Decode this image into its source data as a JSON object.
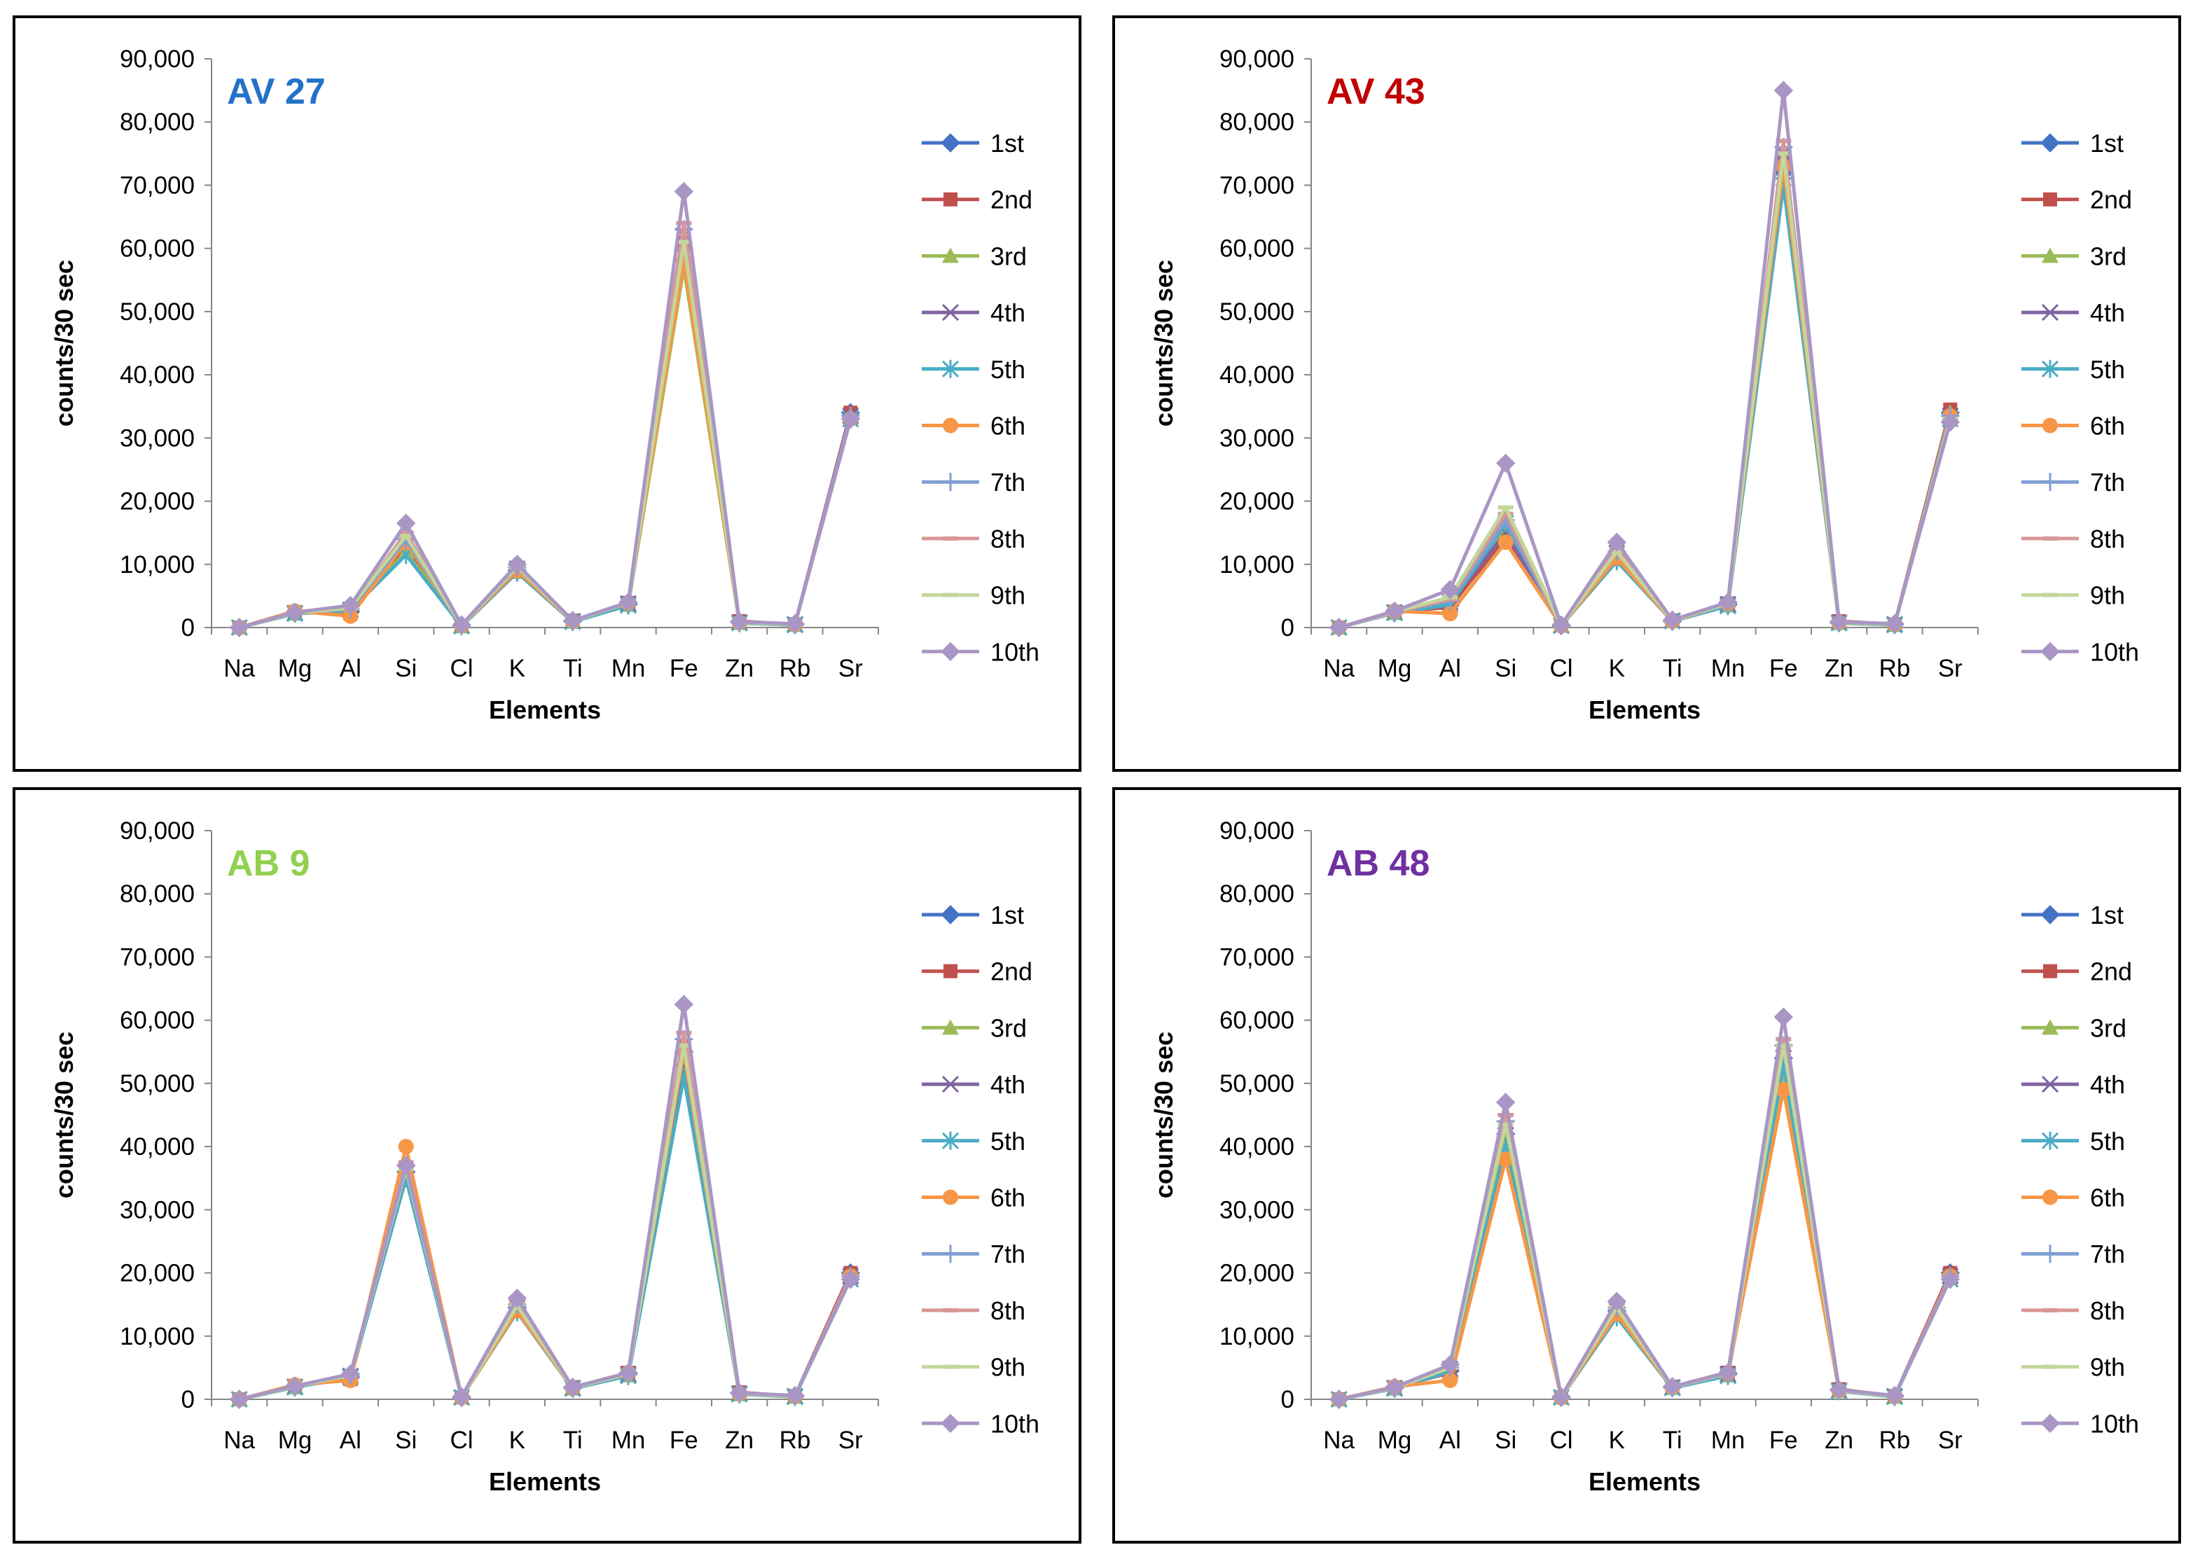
{
  "chart_data": [
    {
      "type": "line",
      "title": "AV 27",
      "title_color": "#2472C8",
      "xlabel": "Elements",
      "ylabel": "counts/30 sec",
      "ylim": [
        0,
        90000
      ],
      "yticks": [
        "0",
        "10,000",
        "20,000",
        "30,000",
        "40,000",
        "50,000",
        "60,000",
        "70,000",
        "80,000",
        "90,000"
      ],
      "categories": [
        "Na",
        "Mg",
        "Al",
        "Si",
        "Cl",
        "K",
        "Ti",
        "Mn",
        "Fe",
        "Zn",
        "Rb",
        "Sr"
      ],
      "series": [
        {
          "name": "1st",
          "values": [
            0,
            2300,
            2500,
            12500,
            400,
            9000,
            1000,
            3700,
            60000,
            900,
            500,
            34000
          ]
        },
        {
          "name": "2nd",
          "values": [
            0,
            2400,
            2200,
            13000,
            300,
            9200,
            1100,
            3900,
            61000,
            1000,
            500,
            34000
          ]
        },
        {
          "name": "3rd",
          "values": [
            0,
            2200,
            2600,
            12000,
            200,
            8800,
            900,
            3600,
            57000,
            700,
            400,
            33500
          ]
        },
        {
          "name": "4th",
          "values": [
            0,
            2300,
            2800,
            13500,
            300,
            9300,
            1000,
            3800,
            62000,
            800,
            500,
            33500
          ]
        },
        {
          "name": "5th",
          "values": [
            0,
            2200,
            2700,
            11500,
            200,
            8700,
            900,
            3500,
            59000,
            700,
            400,
            33000
          ]
        },
        {
          "name": "6th",
          "values": [
            0,
            2600,
            1800,
            13500,
            300,
            9000,
            1000,
            3900,
            58000,
            800,
            500,
            33000
          ]
        },
        {
          "name": "7th",
          "values": [
            0,
            2400,
            2900,
            14000,
            300,
            9500,
            1100,
            3900,
            63000,
            900,
            500,
            33500
          ]
        },
        {
          "name": "8th",
          "values": [
            0,
            2400,
            3000,
            15000,
            300,
            9700,
            1100,
            4000,
            64000,
            900,
            500,
            33000
          ]
        },
        {
          "name": "9th",
          "values": [
            0,
            2300,
            3100,
            14500,
            300,
            9600,
            1000,
            3900,
            61000,
            800,
            500,
            33000
          ]
        },
        {
          "name": "10th",
          "values": [
            0,
            2400,
            3500,
            16500,
            400,
            10000,
            1100,
            4000,
            69000,
            900,
            600,
            33000
          ]
        }
      ]
    },
    {
      "type": "line",
      "title": "AV 43",
      "title_color": "#C00000",
      "xlabel": "Elements",
      "ylabel": "counts/30 sec",
      "ylim": [
        0,
        90000
      ],
      "yticks": [
        "0",
        "10,000",
        "20,000",
        "30,000",
        "40,000",
        "50,000",
        "60,000",
        "70,000",
        "80,000",
        "90,000"
      ],
      "categories": [
        "Na",
        "Mg",
        "Al",
        "Si",
        "Cl",
        "K",
        "Ti",
        "Mn",
        "Fe",
        "Zn",
        "Rb",
        "Sr"
      ],
      "series": [
        {
          "name": "1st",
          "values": [
            0,
            2400,
            3500,
            14000,
            300,
            11000,
            1000,
            3600,
            72000,
            800,
            500,
            34000
          ]
        },
        {
          "name": "2nd",
          "values": [
            0,
            2500,
            3200,
            14500,
            300,
            11500,
            1100,
            3800,
            74000,
            1000,
            500,
            34500
          ]
        },
        {
          "name": "3rd",
          "values": [
            0,
            2300,
            3800,
            16000,
            300,
            11000,
            1000,
            3500,
            71000,
            700,
            400,
            34000
          ]
        },
        {
          "name": "4th",
          "values": [
            0,
            2400,
            4000,
            15000,
            300,
            11800,
            1100,
            3700,
            75000,
            800,
            500,
            33500
          ]
        },
        {
          "name": "5th",
          "values": [
            0,
            2300,
            3600,
            16500,
            300,
            10500,
            1000,
            3400,
            70000,
            700,
            400,
            33000
          ]
        },
        {
          "name": "6th",
          "values": [
            0,
            2600,
            2200,
            13500,
            300,
            11000,
            1000,
            3800,
            73000,
            800,
            500,
            33500
          ]
        },
        {
          "name": "7th",
          "values": [
            0,
            2500,
            4200,
            17000,
            300,
            12000,
            1100,
            3800,
            76000,
            900,
            500,
            33500
          ]
        },
        {
          "name": "8th",
          "values": [
            0,
            2400,
            4500,
            18000,
            300,
            12500,
            1100,
            3900,
            77000,
            900,
            500,
            33000
          ]
        },
        {
          "name": "9th",
          "values": [
            0,
            2500,
            4800,
            19000,
            300,
            12000,
            1100,
            3800,
            75000,
            800,
            500,
            33000
          ]
        },
        {
          "name": "10th",
          "values": [
            0,
            2600,
            6000,
            26000,
            400,
            13500,
            1200,
            4000,
            85000,
            900,
            600,
            32500
          ]
        }
      ]
    },
    {
      "type": "line",
      "title": "AB 9",
      "title_color": "#92D050",
      "xlabel": "Elements",
      "ylabel": "counts/30 sec",
      "ylim": [
        0,
        90000
      ],
      "yticks": [
        "0",
        "10,000",
        "20,000",
        "30,000",
        "40,000",
        "50,000",
        "60,000",
        "70,000",
        "80,000",
        "90,000"
      ],
      "categories": [
        "Na",
        "Mg",
        "Al",
        "Si",
        "Cl",
        "K",
        "Ti",
        "Mn",
        "Fe",
        "Zn",
        "Rb",
        "Sr"
      ],
      "series": [
        {
          "name": "1st",
          "values": [
            0,
            2000,
            3500,
            36000,
            300,
            14500,
            1800,
            4000,
            55000,
            1000,
            500,
            20000
          ]
        },
        {
          "name": "2nd",
          "values": [
            0,
            2100,
            3200,
            36500,
            300,
            14800,
            1900,
            4200,
            56000,
            1100,
            500,
            20000
          ]
        },
        {
          "name": "3rd",
          "values": [
            0,
            1900,
            3600,
            35000,
            300,
            14000,
            1700,
            3800,
            52000,
            800,
            400,
            19500
          ]
        },
        {
          "name": "4th",
          "values": [
            0,
            2000,
            3700,
            36000,
            300,
            14500,
            1800,
            4000,
            54000,
            900,
            500,
            19500
          ]
        },
        {
          "name": "5th",
          "values": [
            0,
            1900,
            3500,
            35000,
            300,
            13800,
            1700,
            3700,
            51000,
            800,
            400,
            19000
          ]
        },
        {
          "name": "6th",
          "values": [
            0,
            2300,
            3000,
            40000,
            300,
            14000,
            1800,
            4200,
            55000,
            900,
            500,
            19500
          ]
        },
        {
          "name": "7th",
          "values": [
            0,
            2100,
            3800,
            37000,
            300,
            15000,
            1900,
            4100,
            57000,
            1000,
            500,
            19500
          ]
        },
        {
          "name": "8th",
          "values": [
            0,
            2100,
            3900,
            37500,
            300,
            15200,
            1900,
            4200,
            58000,
            1000,
            500,
            19500
          ]
        },
        {
          "name": "9th",
          "values": [
            0,
            2000,
            3800,
            36500,
            300,
            14800,
            1800,
            4000,
            56000,
            900,
            500,
            19000
          ]
        },
        {
          "name": "10th",
          "values": [
            0,
            2100,
            4000,
            37000,
            400,
            16000,
            1900,
            4200,
            62500,
            1000,
            600,
            19000
          ]
        }
      ]
    },
    {
      "type": "line",
      "title": "AB 48",
      "title_color": "#7030A0",
      "xlabel": "Elements",
      "ylabel": "counts/30 sec",
      "ylim": [
        0,
        90000
      ],
      "yticks": [
        "0",
        "10,000",
        "20,000",
        "30,000",
        "40,000",
        "50,000",
        "60,000",
        "70,000",
        "80,000",
        "90,000"
      ],
      "categories": [
        "Na",
        "Mg",
        "Al",
        "Si",
        "Cl",
        "K",
        "Ti",
        "Mn",
        "Fe",
        "Zn",
        "Rb",
        "Sr"
      ],
      "series": [
        {
          "name": "1st",
          "values": [
            0,
            1800,
            4500,
            42000,
            300,
            14000,
            1900,
            4000,
            54000,
            1500,
            500,
            20000
          ]
        },
        {
          "name": "2nd",
          "values": [
            0,
            1900,
            4200,
            43000,
            300,
            14500,
            2000,
            4200,
            55000,
            1600,
            500,
            20000
          ]
        },
        {
          "name": "3rd",
          "values": [
            0,
            1700,
            4600,
            41000,
            300,
            13500,
            1800,
            3800,
            52000,
            1300,
            400,
            19500
          ]
        },
        {
          "name": "4th",
          "values": [
            0,
            1800,
            4800,
            44000,
            300,
            14000,
            1900,
            4000,
            54000,
            1400,
            500,
            19500
          ]
        },
        {
          "name": "5th",
          "values": [
            0,
            1700,
            4400,
            40000,
            300,
            13000,
            1800,
            3700,
            53000,
            1300,
            400,
            19000
          ]
        },
        {
          "name": "6th",
          "values": [
            0,
            2000,
            3000,
            38000,
            300,
            13500,
            1900,
            4100,
            49000,
            1400,
            500,
            19500
          ]
        },
        {
          "name": "7th",
          "values": [
            0,
            1900,
            5000,
            44000,
            300,
            14500,
            2000,
            4200,
            56000,
            1500,
            500,
            19500
          ]
        },
        {
          "name": "8th",
          "values": [
            0,
            1900,
            5200,
            45000,
            300,
            15000,
            2000,
            4300,
            57000,
            1500,
            500,
            19500
          ]
        },
        {
          "name": "9th",
          "values": [
            0,
            1800,
            5000,
            43500,
            300,
            14500,
            1900,
            4100,
            56000,
            1400,
            500,
            19000
          ]
        },
        {
          "name": "10th",
          "values": [
            0,
            1900,
            5500,
            47000,
            400,
            15500,
            2000,
            4200,
            60500,
            1500,
            600,
            19000
          ]
        }
      ]
    }
  ],
  "series_styles": [
    {
      "color": "#4472C4",
      "marker": "diamond"
    },
    {
      "color": "#C0504D",
      "marker": "square"
    },
    {
      "color": "#9BBB59",
      "marker": "triangle"
    },
    {
      "color": "#8064A2",
      "marker": "x"
    },
    {
      "color": "#4BACC6",
      "marker": "star"
    },
    {
      "color": "#F79646",
      "marker": "circle"
    },
    {
      "color": "#7F9FD5",
      "marker": "plus"
    },
    {
      "color": "#D99694",
      "marker": "dash"
    },
    {
      "color": "#C3D69B",
      "marker": "dash"
    },
    {
      "color": "#A996C4",
      "marker": "diamond"
    }
  ]
}
